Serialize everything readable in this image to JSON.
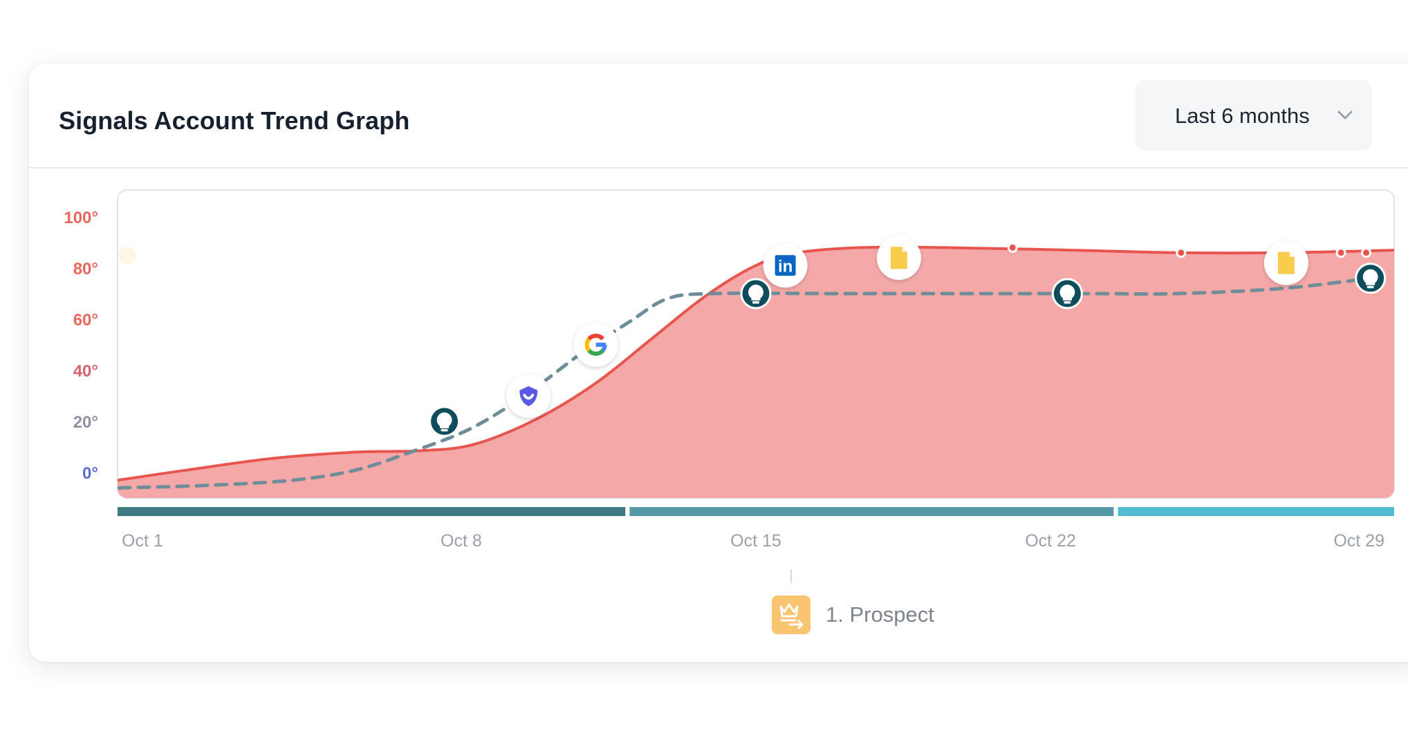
{
  "header": {
    "title": "Signals Account Trend Graph",
    "range_selector": {
      "selected": "Last 6 months",
      "icon": "chevron-down-icon"
    }
  },
  "chart_data": {
    "type": "area",
    "title": "Signals Account Trend Graph",
    "xlabel": "",
    "ylabel": "",
    "y_ticks": [
      "100°",
      "80°",
      "60°",
      "40°",
      "20°",
      "0°"
    ],
    "y_tick_values": [
      100,
      80,
      60,
      40,
      20,
      0
    ],
    "y_tick_colors": [
      "#e8685e",
      "#e8685e",
      "#e8685e",
      "#d2636a",
      "#9090a4",
      "#5a6fd4"
    ],
    "ylim": [
      -10,
      110
    ],
    "x_ticks": [
      "Oct 1",
      "Oct 8",
      "Oct 15",
      "Oct 22",
      "Oct 29"
    ],
    "x_tick_values": [
      1,
      8,
      15,
      22,
      29
    ],
    "xlim": [
      0,
      30
    ],
    "grid": false,
    "legend": "bottom-center",
    "colors": {
      "area_fill": "#f4a9a8",
      "area_line": "#e8554e",
      "dashed_line": "#6f8d98",
      "stage_bar_colors": [
        "#3f7a82",
        "#5498a6",
        "#52bdd0"
      ]
    },
    "series": [
      {
        "values": [
          [
            0.0,
            -3
          ],
          [
            1.5,
            1
          ],
          [
            3.5,
            5.5
          ],
          [
            5.5,
            8
          ],
          [
            7.0,
            8.5
          ],
          [
            8.3,
            11
          ],
          [
            9.8,
            21
          ],
          [
            11.2,
            35
          ],
          [
            12.5,
            52
          ],
          [
            13.8,
            69
          ],
          [
            15.0,
            81
          ],
          [
            16.0,
            86
          ],
          [
            17.5,
            88
          ],
          [
            19.5,
            88
          ],
          [
            22.5,
            87
          ],
          [
            25.0,
            86
          ],
          [
            27.5,
            86
          ],
          [
            30.0,
            87
          ]
        ]
      },
      {
        "values": [
          [
            0.0,
            -6
          ],
          [
            2.0,
            -5
          ],
          [
            4.0,
            -3
          ],
          [
            5.5,
            1
          ],
          [
            6.8,
            8
          ],
          [
            8.2,
            17
          ],
          [
            9.5,
            30
          ],
          [
            10.8,
            46
          ],
          [
            12.0,
            59
          ],
          [
            12.9,
            68
          ],
          [
            14.0,
            70
          ],
          [
            17.0,
            70
          ],
          [
            20.0,
            70
          ],
          [
            23.0,
            70
          ],
          [
            25.0,
            70
          ],
          [
            27.5,
            72
          ],
          [
            29.6,
            76
          ]
        ]
      }
    ],
    "markers": [
      {
        "x": 7.6,
        "y": 20,
        "icon": "lightbulb-icon",
        "style": "dark"
      },
      {
        "x": 9.6,
        "y": 30,
        "icon": "shield-icon",
        "style": "white"
      },
      {
        "x": 11.2,
        "y": 50,
        "icon": "google-icon",
        "style": "white"
      },
      {
        "x": 15.0,
        "y": 70,
        "icon": "lightbulb-icon",
        "style": "dark"
      },
      {
        "x": 15.7,
        "y": 81,
        "icon": "linkedin-icon",
        "style": "white"
      },
      {
        "x": 18.4,
        "y": 84,
        "icon": "document-icon",
        "style": "white"
      },
      {
        "x": 22.4,
        "y": 70,
        "icon": "lightbulb-icon",
        "style": "dark"
      },
      {
        "x": 27.6,
        "y": 82,
        "icon": "document-icon",
        "style": "white"
      },
      {
        "x": 29.6,
        "y": 76,
        "icon": "lightbulb-icon",
        "style": "dark"
      }
    ],
    "dots": [
      {
        "x": 21.1,
        "y": 88
      },
      {
        "x": 25.1,
        "y": 86
      },
      {
        "x": 28.9,
        "y": 86
      },
      {
        "x": 29.5,
        "y": 86
      }
    ],
    "stages": [
      {
        "start": 0,
        "end": 11.9
      },
      {
        "start": 12.0,
        "end": 23.5
      },
      {
        "start": 23.6,
        "end": 30
      }
    ],
    "legend_entry": {
      "icon": "crown-arrow-icon",
      "label": "1. Prospect"
    }
  }
}
